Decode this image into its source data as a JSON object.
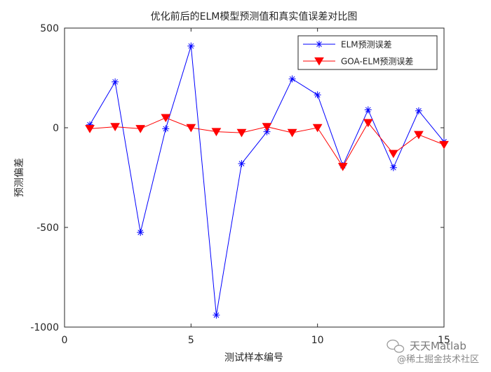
{
  "chart_data": {
    "type": "line",
    "title": "优化前后的ELM模型预测值和真实值误差对比图",
    "xlabel": "测试样本编号",
    "ylabel": "预测偏差",
    "xlim": [
      0,
      15
    ],
    "ylim": [
      -1000,
      500
    ],
    "xticks": [
      0,
      5,
      10,
      15
    ],
    "yticks": [
      -1000,
      -500,
      0,
      500
    ],
    "grid": false,
    "legend_position": "top-right",
    "x": [
      1,
      2,
      3,
      4,
      5,
      6,
      7,
      8,
      9,
      10,
      11,
      12,
      13,
      14,
      15
    ],
    "series": [
      {
        "name": "ELM预测误差",
        "color": "#0000ff",
        "marker": "asterisk",
        "values": [
          15,
          230,
          -525,
          -5,
          410,
          -940,
          -180,
          -20,
          245,
          165,
          -190,
          90,
          -200,
          85,
          -70
        ]
      },
      {
        "name": "GOA-ELM预测误差",
        "color": "#ff0000",
        "marker": "triangle-down",
        "values": [
          -5,
          5,
          -5,
          50,
          0,
          -20,
          -25,
          5,
          -25,
          0,
          -195,
          25,
          -130,
          -35,
          -85
        ]
      }
    ]
  },
  "watermark": {
    "line1": "天天Matlab",
    "line2": "@稀土掘金技术社区"
  }
}
